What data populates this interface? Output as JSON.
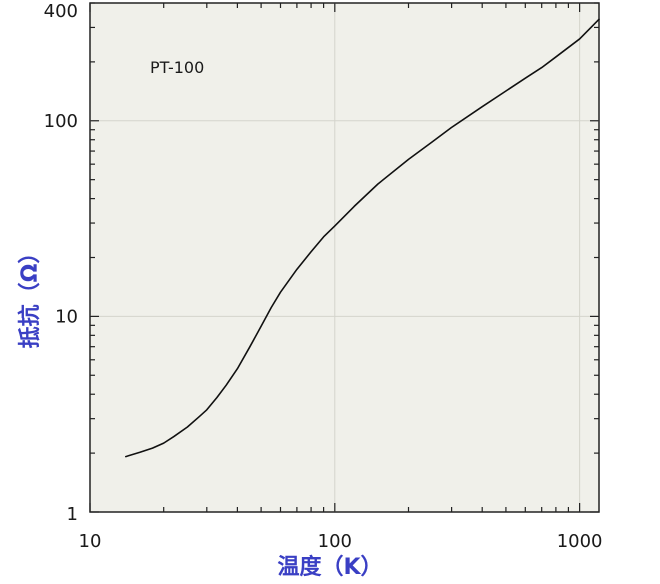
{
  "chart_data": {
    "type": "line",
    "xscale": "log",
    "yscale": "log",
    "xlim": [
      10,
      1200
    ],
    "ylim": [
      1,
      400
    ],
    "xlabel": "温度（K）",
    "ylabel": "抵抗（Ω）",
    "xticks": [
      10,
      100,
      1000
    ],
    "xtick_labels": [
      "10",
      "100",
      "1000"
    ],
    "yticks": [
      1,
      10,
      100,
      400
    ],
    "ytick_labels": [
      "1",
      "10",
      "100",
      "400"
    ],
    "grid": true,
    "annotation": "PT-100",
    "series": [
      {
        "color": "#111111",
        "x": [
          14,
          16,
          18,
          20,
          22,
          25,
          28,
          30,
          33,
          36,
          40,
          45,
          50,
          55,
          60,
          70,
          80,
          90,
          100,
          120,
          150,
          200,
          250,
          300,
          400,
          500,
          600,
          700,
          800,
          1000,
          1200
        ],
        "y": [
          1.92,
          2.02,
          2.12,
          2.25,
          2.43,
          2.72,
          3.08,
          3.33,
          3.85,
          4.45,
          5.4,
          7.0,
          8.9,
          11.1,
          13.3,
          17.4,
          21.4,
          25.5,
          29.0,
          36.5,
          47.5,
          63.5,
          78.0,
          92.5,
          118,
          142,
          165,
          187,
          212,
          262,
          330
        ]
      }
    ]
  }
}
